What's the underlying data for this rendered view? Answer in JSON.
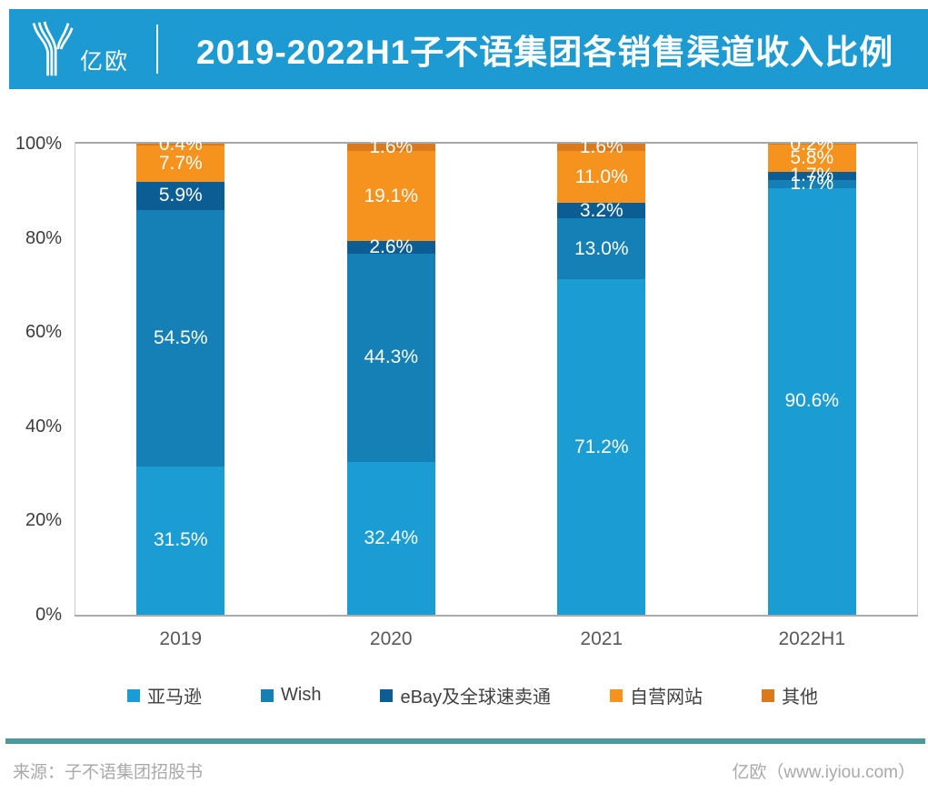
{
  "header": {
    "logo_text": "亿欧",
    "title": "2019-2022H1子不语集团各销售渠道收入比例",
    "banner_color": "#1c9ad1"
  },
  "chart_data": {
    "type": "bar",
    "stacked": true,
    "title": "2019-2022H1子不语集团各销售渠道收入比例",
    "categories": [
      "2019",
      "2020",
      "2021",
      "2022H1"
    ],
    "series": [
      {
        "name": "亚马逊",
        "color": "#1b9dd3",
        "values": [
          31.5,
          32.4,
          71.2,
          90.6
        ]
      },
      {
        "name": "Wish",
        "color": "#1480b5",
        "values": [
          54.5,
          44.3,
          13.0,
          1.7
        ]
      },
      {
        "name": "eBay及全球速卖通",
        "color": "#0b5d94",
        "values": [
          5.9,
          2.6,
          3.2,
          1.7
        ]
      },
      {
        "name": "自营网站",
        "color": "#f6921e",
        "values": [
          7.7,
          19.1,
          11.0,
          5.8
        ]
      },
      {
        "name": "其他",
        "color": "#db7a1d",
        "values": [
          0.4,
          1.6,
          1.6,
          0.2
        ]
      }
    ],
    "value_suffix": "%",
    "y_ticks": [
      "0%",
      "20%",
      "40%",
      "60%",
      "80%",
      "100%"
    ],
    "ylim": [
      0,
      100
    ],
    "grid": false,
    "legend_position": "bottom"
  },
  "footer": {
    "source": "来源：子不语集团招股书",
    "credit": "亿欧（www.iyiou.com）",
    "rule_color": "#4e989b"
  }
}
